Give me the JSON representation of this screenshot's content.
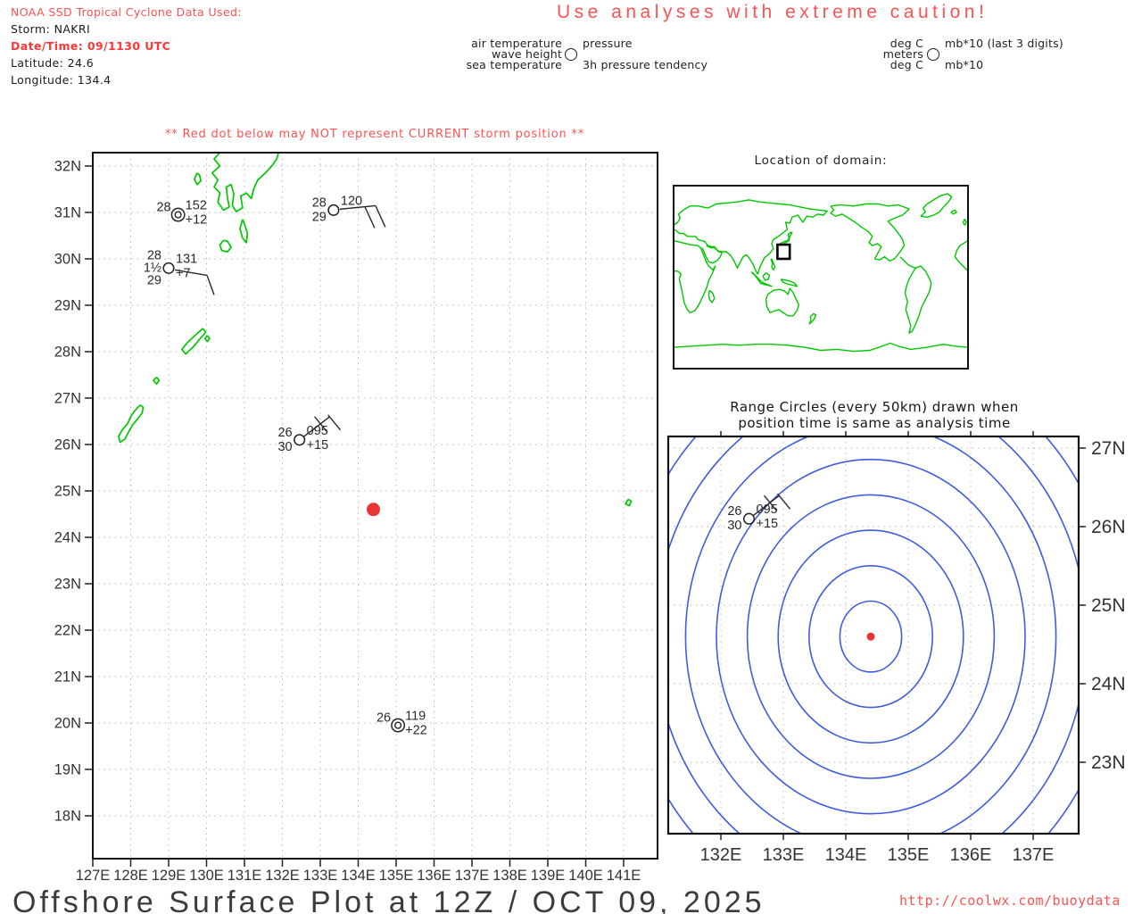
{
  "header": {
    "source_line": "NOAA SSD Tropical Cyclone Data Used:",
    "storm_line": "Storm: NAKRI",
    "datetime_line": "Date/Time: 09/1130 UTC",
    "latitude_line": "Latitude: 24.6",
    "longitude_line": "Longitude: 134.4"
  },
  "caution_title": "Use analyses with extreme caution!",
  "legend": {
    "left": {
      "row1_left": "air temperature",
      "row1_right": "pressure",
      "row2_left": "wave height",
      "row3_left": "sea temperature",
      "row3_right": "3h pressure tendency"
    },
    "right": {
      "row1_left": "deg C",
      "row1_right": "mb*10 (last 3 digits)",
      "row2_left": "meters",
      "row3_left": "deg C",
      "row3_right": "mb*10"
    }
  },
  "warning_line": "** Red dot below may NOT represent CURRENT storm position **",
  "world_panel": {
    "title": "Location of domain:"
  },
  "range_panel": {
    "title_line1": "Range Circles (every 50km) drawn when",
    "title_line2": "position time is same as analysis time"
  },
  "footer": {
    "title": "Offshore Surface Plot at 12Z / OCT 09, 2025",
    "url": "http://coolwx.com/buoydata"
  },
  "colors": {
    "red_text": "#ff5252",
    "storm_dot": "#e83535",
    "coast_green": "#00c800",
    "range_blue": "#3f5ce0",
    "grid_gray": "#b3b3b3",
    "ink": "#2a2a2a",
    "frame": "#111111"
  },
  "chart_data": {
    "type": "map-station-surface-plot",
    "storm": {
      "name": "NAKRI",
      "date_time": "09/1130 UTC",
      "latitude": 24.6,
      "longitude": 134.4
    },
    "main_map": {
      "lon_ticks": [
        "127E",
        "128E",
        "129E",
        "130E",
        "131E",
        "132E",
        "133E",
        "134E",
        "135E",
        "136E",
        "137E",
        "138E",
        "139E",
        "140E",
        "141E"
      ],
      "lat_ticks": [
        "32N",
        "31N",
        "30N",
        "29N",
        "28N",
        "27N",
        "26N",
        "25N",
        "24N",
        "23N",
        "22N",
        "21N",
        "20N",
        "19N",
        "18N"
      ],
      "lon_range": [
        127,
        141.9
      ],
      "lat_range": [
        17.1,
        32.3
      ],
      "grid": "dotted 1 degree"
    },
    "range_map": {
      "lon_ticks": [
        "132E",
        "133E",
        "134E",
        "135E",
        "136E",
        "137E"
      ],
      "lat_ticks": [
        "27N",
        "26N",
        "25N",
        "24N",
        "23N"
      ],
      "ring_spacing_km": 50,
      "rings_drawn": 9,
      "center": {
        "latitude": 24.6,
        "longitude": 134.4
      }
    },
    "stations": [
      {
        "lat": 30.95,
        "lon": 129.25,
        "symbol": "double-circle",
        "air_temp": "28",
        "pressure": "152",
        "tendency_3h": "+12",
        "panels": [
          "main"
        ],
        "barb": null
      },
      {
        "lat": 31.05,
        "lon": 133.35,
        "symbol": "circle",
        "air_temp": "28",
        "pressure": "120",
        "sea_temp": "29",
        "panels": [
          "main"
        ],
        "barb": [
          [
            [
              7,
              -1
            ],
            [
              47,
              -5
            ]
          ],
          [
            [
              35,
              -4
            ],
            [
              46,
              20
            ]
          ],
          [
            [
              47,
              -5
            ],
            [
              58,
              19
            ]
          ]
        ]
      },
      {
        "lat": 29.8,
        "lon": 129.0,
        "symbol": "circle",
        "air_temp": "28",
        "wave_height": "1½",
        "pressure": "131",
        "tendency_3h": "+7",
        "sea_temp": "29",
        "panels": [
          "main"
        ],
        "barb": [
          [
            [
              7,
              2
            ],
            [
              43,
              8
            ]
          ],
          [
            [
              43,
              8
            ],
            [
              51,
              30
            ]
          ]
        ]
      },
      {
        "lat": 26.1,
        "lon": 132.45,
        "symbol": "circle",
        "air_temp": "26",
        "pressure": "095",
        "sea_temp": "30",
        "tendency_3h": "+15",
        "panels": [
          "main",
          "range"
        ],
        "barb": [
          [
            [
              4,
              -3
            ],
            [
              34,
              -26
            ]
          ],
          [
            [
              17,
              -26
            ],
            [
              31,
              -9
            ]
          ],
          [
            [
              32,
              -28
            ],
            [
              46,
              -11
            ]
          ]
        ]
      },
      {
        "lat": 19.95,
        "lon": 135.05,
        "symbol": "double-circle",
        "air_temp": "26",
        "pressure": "119",
        "tendency_3h": "+22",
        "panels": [
          "main"
        ],
        "barb": null
      }
    ]
  }
}
